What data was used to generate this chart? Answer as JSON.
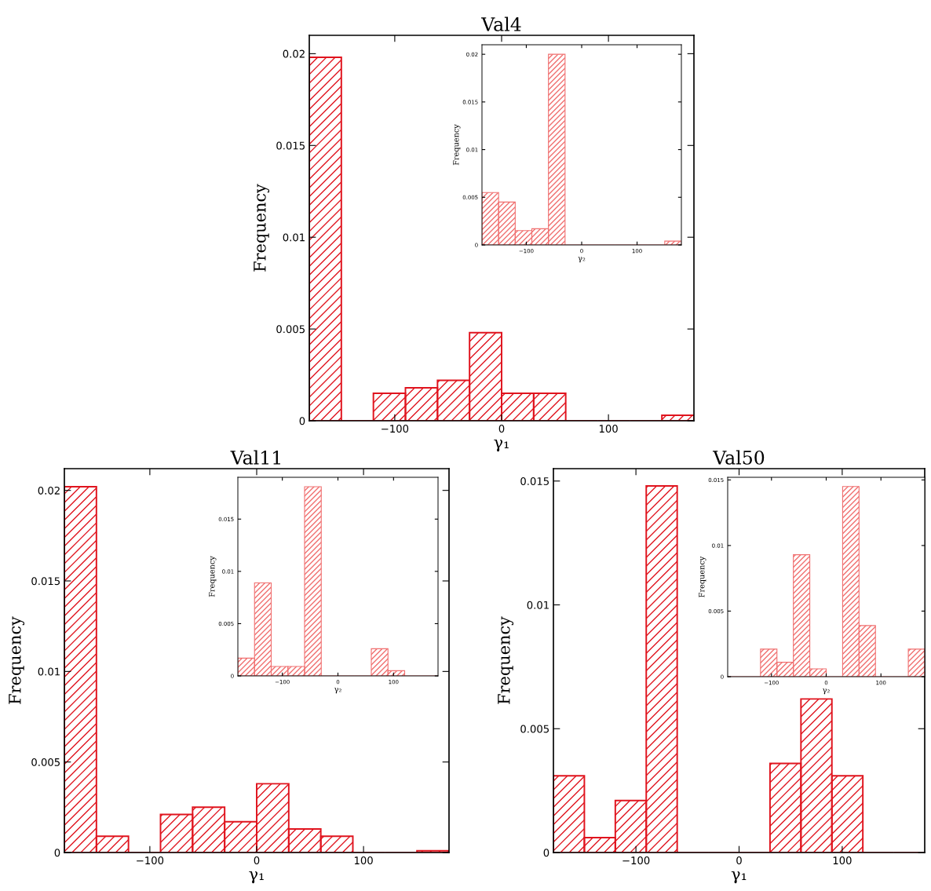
{
  "chart_data": [
    {
      "type": "histogram",
      "title": "Val4",
      "xlabel": "γ₁",
      "ylabel": "Frequency",
      "bins": [
        -180,
        -150,
        -120,
        -90,
        -60,
        -30,
        0,
        30,
        60,
        90,
        120,
        150,
        180
      ],
      "values": [
        0.0198,
        0,
        0.0015,
        0.0018,
        0.0022,
        0.0048,
        0.0015,
        0.0015,
        0,
        0,
        0,
        0.0003
      ],
      "color": "#e0141e",
      "xlim": [
        -180,
        180
      ],
      "xticks": [
        -100,
        0,
        100
      ],
      "ylim": [
        0,
        0.021
      ],
      "yticks": [
        0,
        0.005,
        0.01,
        0.015,
        0.02
      ]
    },
    {
      "type": "histogram",
      "xlabel": "γ₂",
      "ylabel": "Frequency",
      "bins": [
        -180,
        -150,
        -120,
        -90,
        -60,
        -30,
        0,
        30,
        60,
        90,
        120,
        150,
        180
      ],
      "values": [
        0.0055,
        0.0045,
        0.0015,
        0.0017,
        0.02,
        0,
        0,
        0,
        0,
        0,
        0,
        0.0004
      ],
      "color": "#f07070",
      "xlim": [
        -180,
        180
      ],
      "xticks": [
        -100,
        0,
        100
      ],
      "ylim": [
        0,
        0.021
      ],
      "yticks": [
        0,
        0.005,
        0.01,
        0.015,
        0.02
      ]
    },
    {
      "type": "histogram",
      "title": "Val11",
      "xlabel": "γ₁",
      "ylabel": "Frequency",
      "bins": [
        -180,
        -150,
        -120,
        -90,
        -60,
        -30,
        0,
        30,
        60,
        90,
        120,
        150,
        180
      ],
      "values": [
        0.0202,
        0.0009,
        0,
        0.0021,
        0.0025,
        0.0017,
        0.0038,
        0.0013,
        0.0009,
        0,
        0,
        0.0001
      ],
      "color": "#e0141e",
      "xlim": [
        -180,
        180
      ],
      "xticks": [
        -100,
        0,
        100
      ],
      "ylim": [
        0,
        0.0212
      ],
      "yticks": [
        0,
        0.005,
        0.01,
        0.015,
        0.02
      ]
    },
    {
      "type": "histogram",
      "xlabel": "γ₂",
      "ylabel": "Frequency",
      "bins": [
        -180,
        -150,
        -120,
        -90,
        -60,
        -30,
        0,
        30,
        60,
        90,
        120,
        150,
        180
      ],
      "values": [
        0.0017,
        0.0089,
        0.0009,
        0.0009,
        0.0181,
        0,
        0,
        0,
        0.0026,
        0.0005,
        0,
        0
      ],
      "color": "#f07070",
      "xlim": [
        -180,
        180
      ],
      "xticks": [
        -100,
        0,
        100
      ],
      "ylim": [
        0,
        0.019
      ],
      "yticks": [
        0,
        0.005,
        0.01,
        0.015
      ]
    },
    {
      "type": "histogram",
      "title": "Val50",
      "xlabel": "γ₁",
      "ylabel": "Frequency",
      "bins": [
        -180,
        -150,
        -120,
        -90,
        -60,
        -30,
        0,
        30,
        60,
        90,
        120,
        150,
        180
      ],
      "values": [
        0.0031,
        0.0006,
        0.0021,
        0.0148,
        0,
        0,
        0,
        0.0036,
        0.0062,
        0.0031,
        0,
        0
      ],
      "color": "#e0141e",
      "xlim": [
        -180,
        180
      ],
      "xticks": [
        -100,
        0,
        100
      ],
      "ylim": [
        0,
        0.0155
      ],
      "yticks": [
        0,
        0.005,
        0.01,
        0.015
      ]
    },
    {
      "type": "histogram",
      "xlabel": "γ₂",
      "ylabel": "Frequency",
      "bins": [
        -180,
        -150,
        -120,
        -90,
        -60,
        -30,
        0,
        30,
        60,
        90,
        120,
        150,
        180
      ],
      "values": [
        0,
        0,
        0.0021,
        0.0011,
        0.0093,
        0.0006,
        0,
        0.0145,
        0.0039,
        0,
        0,
        0.0021
      ],
      "color": "#f07070",
      "xlim": [
        -180,
        180
      ],
      "xticks": [
        -100,
        0,
        100
      ],
      "ylim": [
        0,
        0.0152
      ],
      "yticks": [
        0,
        0.005,
        0.01,
        0.015
      ]
    }
  ]
}
